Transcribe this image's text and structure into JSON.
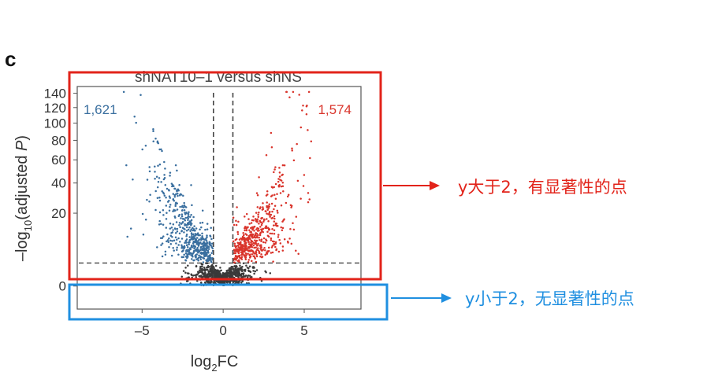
{
  "chart_data": {
    "type": "scatter",
    "panel_label": "c",
    "title": "shNAT10–1 versus shNS",
    "xlabel": {
      "base": "log",
      "sub": "2",
      "tail": "FC"
    },
    "ylabel": {
      "pre": "–log",
      "sub": "10",
      "mid": "(adjusted ",
      "italic": "P",
      "post": ")"
    },
    "x_ticks": [
      {
        "value": -5,
        "label": "–5"
      },
      {
        "value": 0,
        "label": "0"
      },
      {
        "value": 5,
        "label": "5"
      }
    ],
    "y_ticks": [
      {
        "value": 0,
        "label": "0"
      },
      {
        "value": 20,
        "label": "20"
      },
      {
        "value": 40,
        "label": "40"
      },
      {
        "value": 60,
        "label": "60"
      },
      {
        "value": 80,
        "label": "80"
      },
      {
        "value": 100,
        "label": "100"
      },
      {
        "value": 120,
        "label": "120"
      },
      {
        "value": 140,
        "label": "140"
      }
    ],
    "xlim": [
      -9,
      8.5
    ],
    "ylim": [
      -2,
      150
    ],
    "y_scale": "sqrt",
    "thresholds": {
      "log2fc": [
        -0.6,
        0.6
      ],
      "neg_log10_padj": 2
    },
    "counts": {
      "down": {
        "label": "1,621",
        "value": 1621,
        "position": "top-left"
      },
      "up": {
        "label": "1,574",
        "value": 1574,
        "position": "top-right"
      }
    },
    "series": [
      {
        "group": "down",
        "color": "#3a6f9f"
      },
      {
        "group": "up",
        "color": "#d9342b"
      },
      {
        "group": "ns",
        "color": "#3a3a3a"
      }
    ]
  },
  "annotations": {
    "significant": {
      "label": "y大于2，有显著性的点",
      "color": "#e2231a"
    },
    "not_significant": {
      "label": "y小于2，无显著性的点",
      "color": "#1f8fe0"
    }
  },
  "colors": {
    "down": "#3a6f9f",
    "up": "#d9342b",
    "ns": "#3a3a3a",
    "red_box": "#e2231a",
    "blue_box": "#1f8fe0"
  }
}
